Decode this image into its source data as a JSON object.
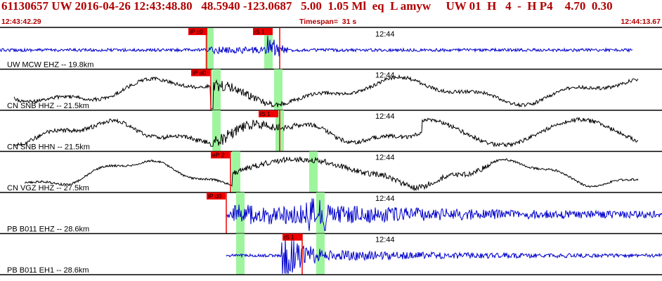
{
  "header": {
    "title": "61130657 UW 2016-04-26 12:43:48.80   48.5940 -123.0687   5.00  1.05 Ml  eq  L amyw     UW 01  H   4  -  H P4    4.70  0.30",
    "start_time": "12:43:42.29",
    "timespan": "Timespan=  31 s",
    "end_time": "12:44:13.67"
  },
  "colors": {
    "header_text": "#b00000",
    "blue_trace": "#0000cc",
    "black_trace": "#000000",
    "pick_box": "#ee0000",
    "pick_window": "#9ef59e",
    "panel_border": "#000000"
  },
  "panels": [
    {
      "label": "UW MCW EHZ -- 19.8km",
      "minute_label": "12:44",
      "color": "blue",
      "picks": [
        {
          "label": "iP c0"
        },
        {
          "label": "iS 1"
        }
      ],
      "windows": 2
    },
    {
      "label": "CN SNB HHZ -- 21.5km",
      "minute_label": "12:44",
      "color": "black",
      "picks": [
        {
          "label": "iP d0"
        }
      ],
      "windows": 2
    },
    {
      "label": "CN SNB HHN -- 21.5km",
      "minute_label": "12:44",
      "color": "black",
      "picks": [
        {
          "label": "iS 1"
        }
      ],
      "windows": 2
    },
    {
      "label": "CN VGZ HHZ -- 27.5km",
      "minute_label": "12:44",
      "color": "black",
      "picks": [
        {
          "label": "eP 2"
        }
      ],
      "windows": 2
    },
    {
      "label": "PB B011 EHZ -- 28.6km",
      "minute_label": "12:44",
      "color": "blue",
      "picks": [
        {
          "label": "iP d0"
        }
      ],
      "windows": 2
    },
    {
      "label": "PB B011 EH1 -- 28.6km",
      "minute_label": "12:44",
      "color": "blue",
      "picks": [
        {
          "label": "iS 1"
        }
      ],
      "windows": 2
    }
  ]
}
